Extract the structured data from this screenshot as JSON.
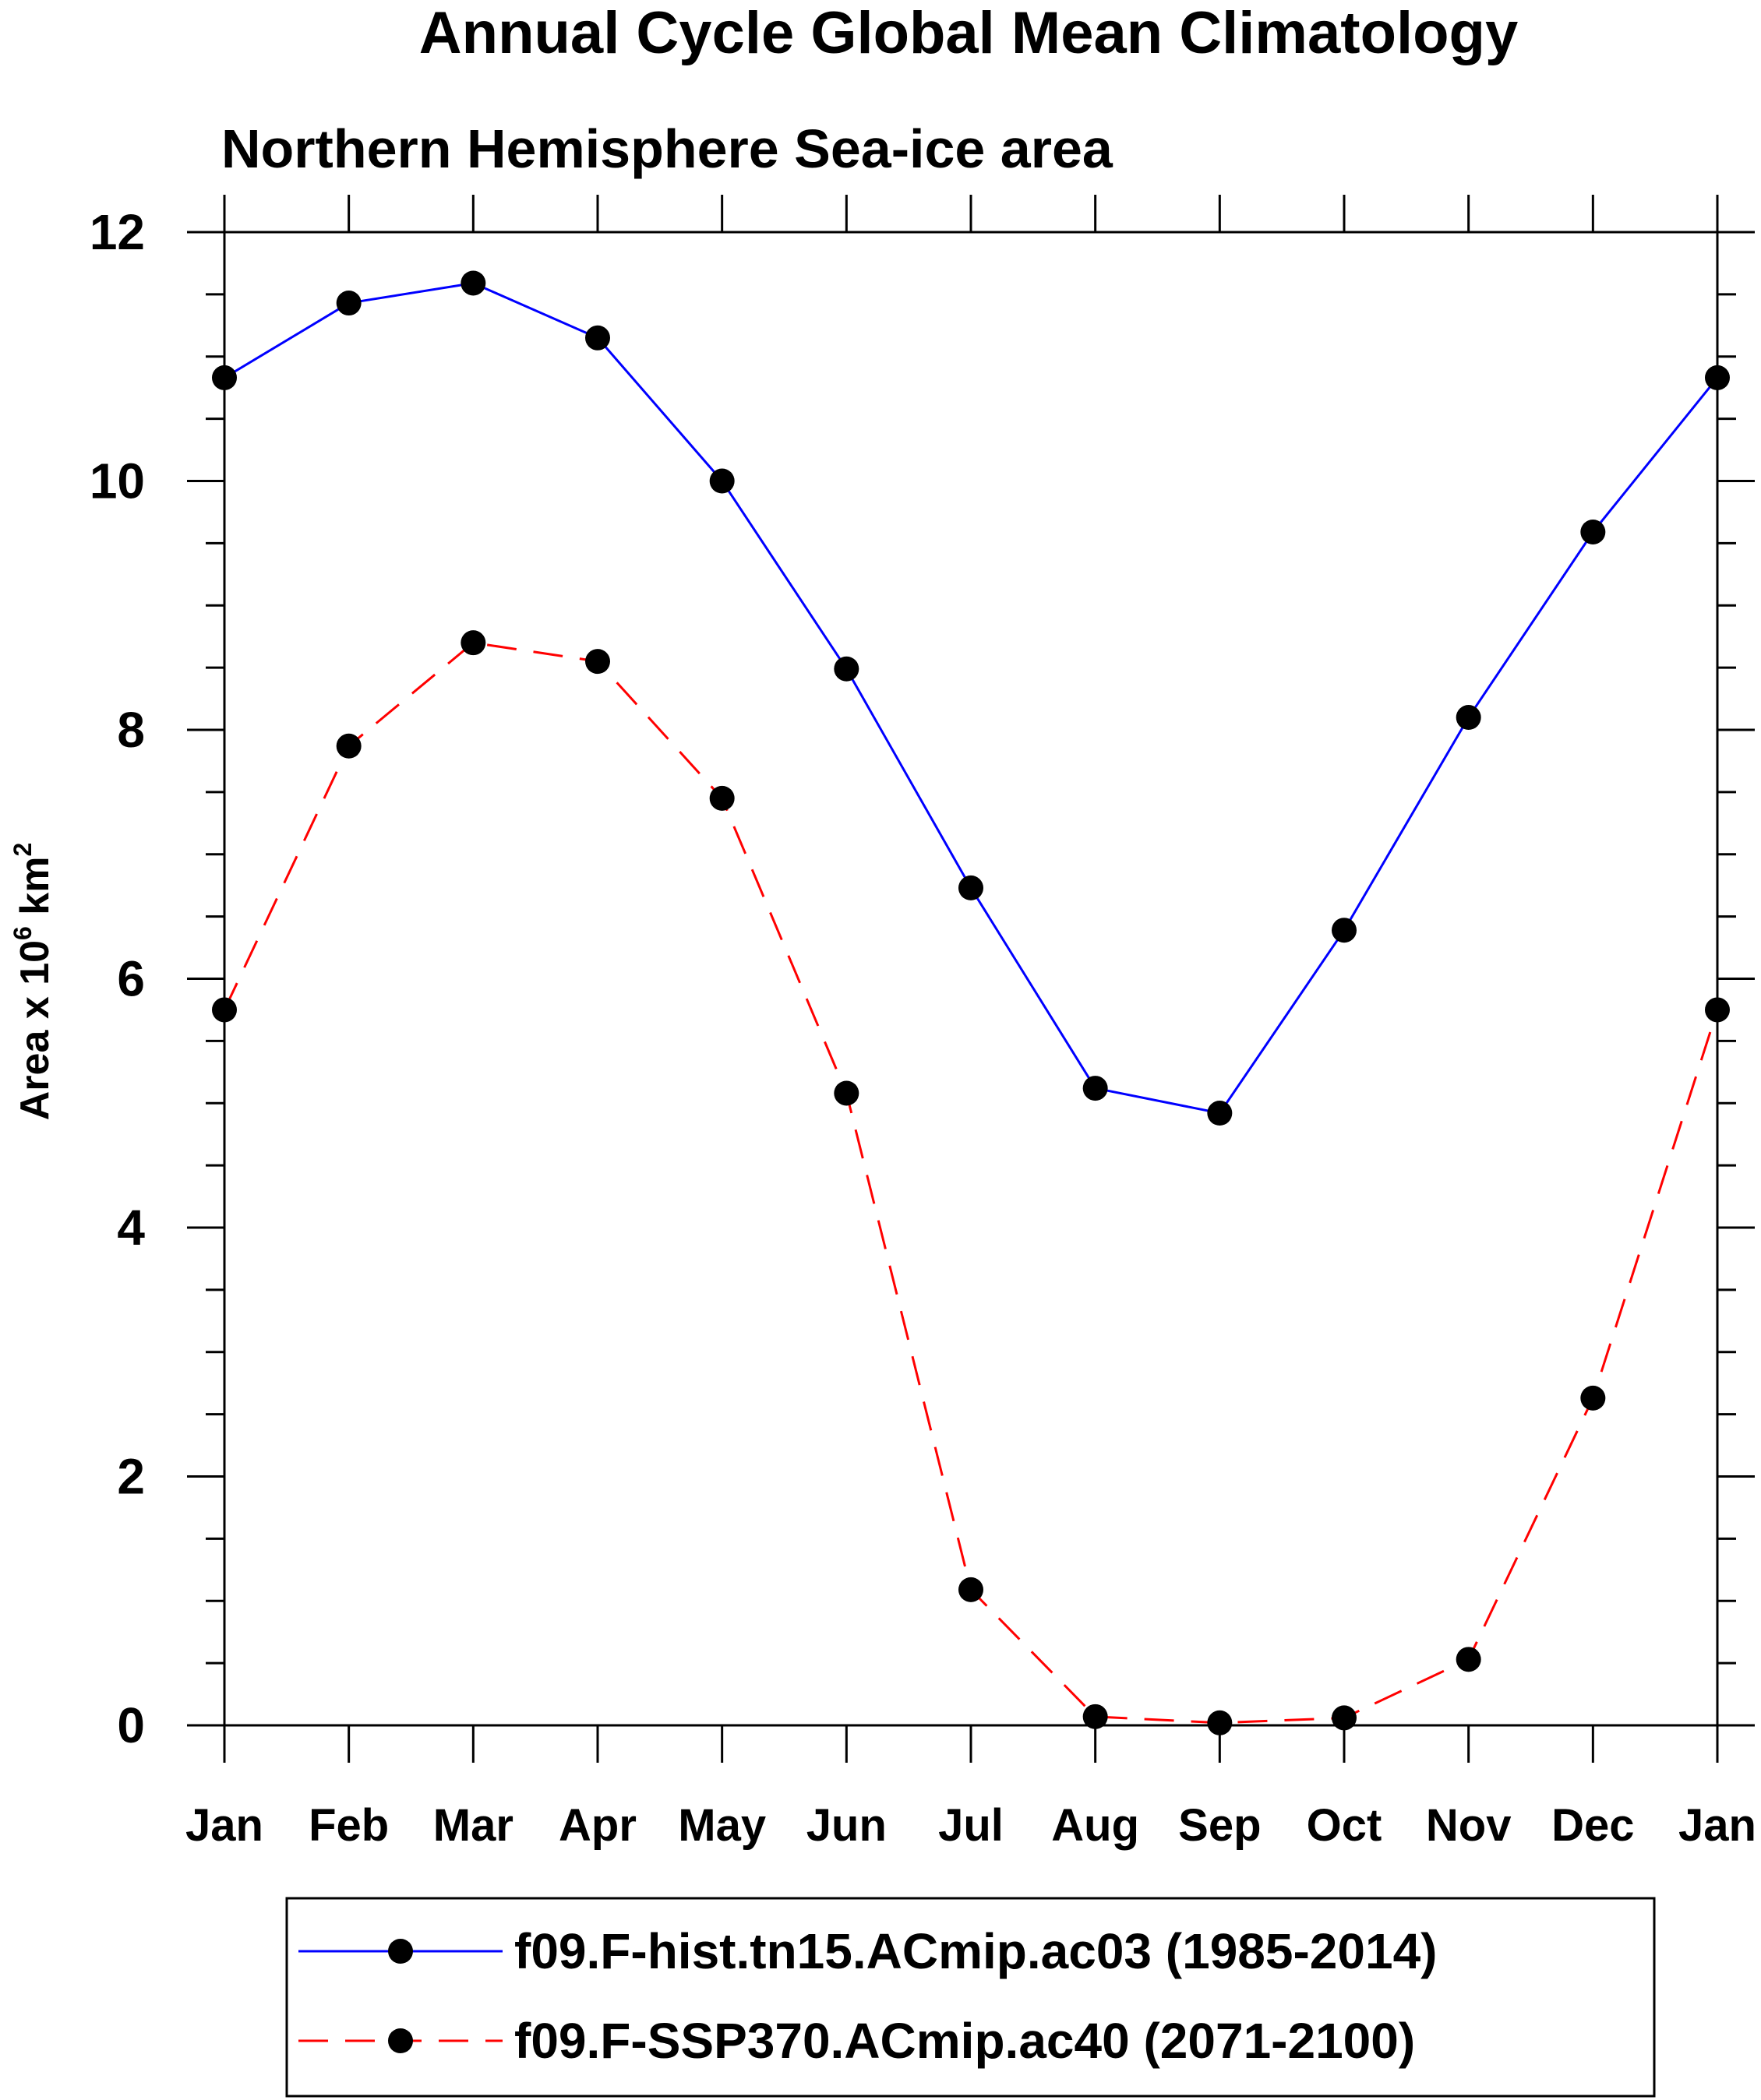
{
  "chart_data": {
    "type": "line",
    "title": "Annual Cycle Global Mean Climatology",
    "subtitle": "Northern Hemisphere Sea-ice area",
    "ylabel": "Area x 10",
    "ylabel_exponent": "6",
    "ylabel_unit": "km",
    "ylabel_unit_exponent": "2",
    "xlabel": "",
    "categories": [
      "Jan",
      "Feb",
      "Mar",
      "Apr",
      "May",
      "Jun",
      "Jul",
      "Aug",
      "Sep",
      "Oct",
      "Nov",
      "Dec",
      "Jan"
    ],
    "ylim": [
      0,
      12
    ],
    "yticks": [
      "0",
      "2",
      "4",
      "6",
      "8",
      "10",
      "12"
    ],
    "grid": false,
    "legend_position": "bottom",
    "series": [
      {
        "name": "f09.F-hist.tn15.ACmip.ac03 (1985-2014)",
        "color": "#0000ff",
        "dash": "solid",
        "marker": "filled-circle",
        "values": [
          10.83,
          11.43,
          11.59,
          11.15,
          10.0,
          8.49,
          6.73,
          5.12,
          4.92,
          6.39,
          8.1,
          9.59,
          10.83
        ]
      },
      {
        "name": "f09.F-SSP370.ACmip.ac40 (2071-2100)",
        "color": "#ff0000",
        "dash": "dashed",
        "marker": "filled-circle",
        "values": [
          5.75,
          7.87,
          8.7,
          8.55,
          7.45,
          5.08,
          1.09,
          0.07,
          0.02,
          0.06,
          0.53,
          2.63,
          5.75
        ]
      }
    ]
  }
}
